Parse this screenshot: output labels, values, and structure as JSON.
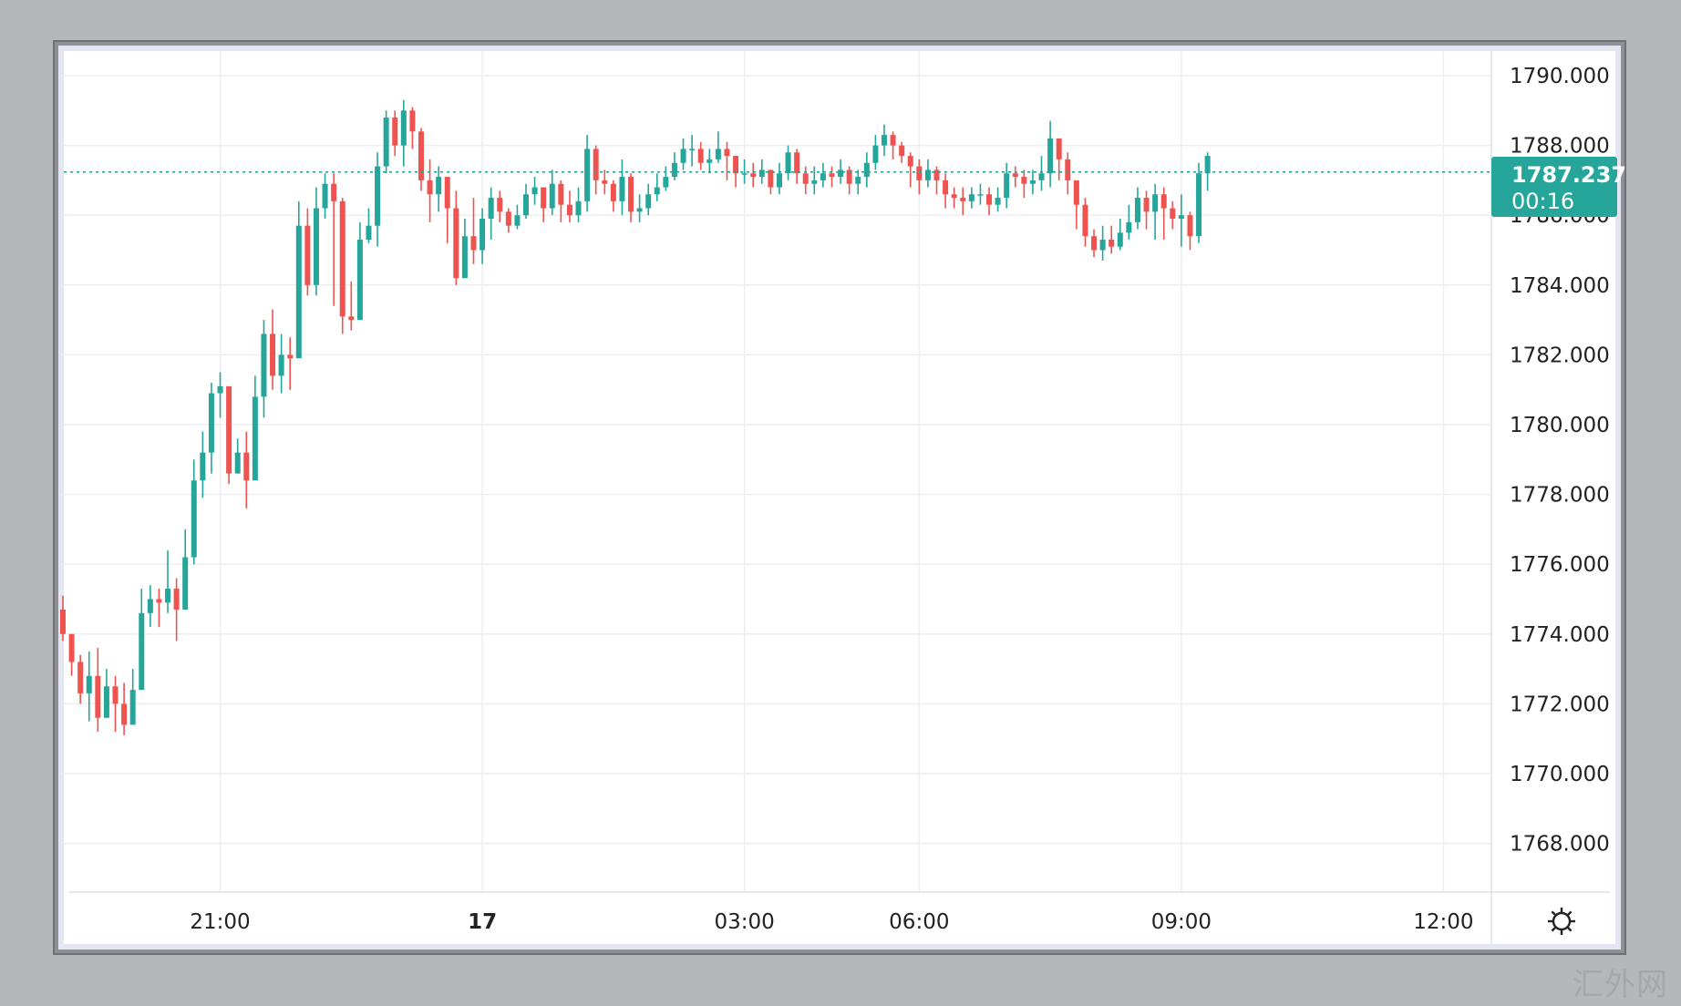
{
  "watermark": "汇外网",
  "current_price_label": "1787.237",
  "countdown_label": "00:16",
  "colors": {
    "up": "#26a69a",
    "down": "#ef5350",
    "price_line": "#26a69a",
    "grid": "#eceef2"
  },
  "settings_icon": "gear-icon",
  "chart_data": {
    "type": "candlestick",
    "title": "",
    "xlabel": "",
    "ylabel": "",
    "ylim": [
      1766.2,
      1791.3
    ],
    "y_ticks": [
      "1768.000",
      "1770.000",
      "1772.000",
      "1774.000",
      "1776.000",
      "1778.000",
      "1780.000",
      "1782.000",
      "1784.000",
      "1786.000",
      "1788.000",
      "1790.000"
    ],
    "x_ticks": [
      {
        "label": "21:00",
        "bar": 18
      },
      {
        "label": "17",
        "bar": 48,
        "bold": true
      },
      {
        "label": "03:00",
        "bar": 78
      },
      {
        "label": "06:00",
        "bar": 98
      },
      {
        "label": "09:00",
        "bar": 128
      },
      {
        "label": "12:00",
        "bar": 158
      }
    ],
    "grid": true,
    "current_price": 1787.237,
    "closes": [
      1774.0,
      1773.2,
      1772.3,
      1772.8,
      1771.6,
      1772.5,
      1772.0,
      1771.4,
      1772.4,
      1774.6,
      1775.0,
      1774.9,
      1775.3,
      1774.7,
      1776.2,
      1778.4,
      1779.2,
      1780.9,
      1781.1,
      1778.6,
      1779.2,
      1778.4,
      1780.8,
      1782.6,
      1781.4,
      1782.0,
      1781.9,
      1785.7,
      1784.0,
      1786.2,
      1786.9,
      1786.4,
      1783.1,
      1783.0,
      1785.3,
      1785.7,
      1787.4,
      1788.8,
      1788.0,
      1789.0,
      1788.4,
      1787.0,
      1786.6,
      1787.1,
      1786.2,
      1784.2,
      1785.4,
      1785.0,
      1785.9,
      1786.5,
      1786.1,
      1785.7,
      1786.0,
      1786.6,
      1786.8,
      1786.2,
      1786.9,
      1786.3,
      1786.0,
      1786.4,
      1787.9,
      1787.0,
      1786.9,
      1786.4,
      1787.1,
      1786.1,
      1786.2,
      1786.6,
      1786.8,
      1787.1,
      1787.5,
      1787.9,
      1787.9,
      1787.5,
      1787.6,
      1787.9,
      1787.7,
      1787.2,
      1787.2,
      1787.1,
      1787.3,
      1786.8,
      1787.2,
      1787.8,
      1787.2,
      1786.9,
      1787.0,
      1787.2,
      1787.1,
      1787.3,
      1786.9,
      1787.1,
      1787.5,
      1788.0,
      1788.3,
      1788.0,
      1787.7,
      1787.4,
      1787.0,
      1787.3,
      1787.0,
      1786.6,
      1786.5,
      1786.4,
      1786.6,
      1786.6,
      1786.3,
      1786.5,
      1787.2,
      1787.1,
      1786.9,
      1787.0,
      1787.2,
      1788.2,
      1787.6,
      1787.0,
      1786.3,
      1785.4,
      1785.0,
      1785.3,
      1785.1,
      1785.5,
      1785.8,
      1786.5,
      1786.1,
      1786.6,
      1786.2,
      1785.9,
      1786.0,
      1785.4,
      1787.2,
      1787.7
    ],
    "highs": [
      1775.1,
      1774.0,
      1773.4,
      1773.5,
      1773.6,
      1773.0,
      1772.8,
      1772.6,
      1773.0,
      1775.3,
      1775.4,
      1775.3,
      1776.4,
      1775.6,
      1777.0,
      1779.0,
      1779.8,
      1781.2,
      1781.5,
      1780.3,
      1779.6,
      1779.8,
      1781.4,
      1783.0,
      1783.3,
      1782.6,
      1782.5,
      1786.4,
      1786.2,
      1786.8,
      1787.2,
      1787.2,
      1786.5,
      1784.1,
      1785.8,
      1786.2,
      1787.8,
      1789.0,
      1789.0,
      1789.3,
      1789.1,
      1788.5,
      1787.6,
      1787.4,
      1787.0,
      1786.7,
      1785.9,
      1786.5,
      1786.2,
      1786.8,
      1786.7,
      1786.2,
      1786.3,
      1786.9,
      1787.1,
      1786.8,
      1787.3,
      1787.0,
      1786.7,
      1786.8,
      1788.3,
      1788.0,
      1787.3,
      1787.0,
      1787.6,
      1787.2,
      1786.6,
      1786.9,
      1787.2,
      1787.4,
      1787.8,
      1788.2,
      1788.3,
      1788.1,
      1787.9,
      1788.4,
      1788.1,
      1787.7,
      1787.6,
      1787.5,
      1787.6,
      1787.3,
      1787.5,
      1788.0,
      1787.9,
      1787.4,
      1787.4,
      1787.5,
      1787.4,
      1787.6,
      1787.4,
      1787.3,
      1787.8,
      1788.3,
      1788.6,
      1788.4,
      1788.1,
      1787.8,
      1787.6,
      1787.6,
      1787.4,
      1787.2,
      1786.8,
      1786.8,
      1786.8,
      1786.9,
      1786.8,
      1786.8,
      1787.5,
      1787.4,
      1787.3,
      1787.3,
      1787.7,
      1788.7,
      1788.1,
      1787.8,
      1787.0,
      1786.5,
      1785.6,
      1785.7,
      1785.7,
      1785.9,
      1786.3,
      1786.8,
      1786.7,
      1786.9,
      1786.8,
      1786.4,
      1786.6,
      1786.1,
      1787.5,
      1787.8
    ],
    "lows": [
      1773.8,
      1772.8,
      1772.0,
      1771.5,
      1771.2,
      1771.6,
      1771.2,
      1771.1,
      1771.7,
      1772.4,
      1774.2,
      1774.2,
      1774.6,
      1773.8,
      1774.7,
      1776.0,
      1777.9,
      1778.6,
      1780.2,
      1778.3,
      1778.6,
      1777.6,
      1778.6,
      1780.2,
      1781.0,
      1780.9,
      1781.0,
      1782.0,
      1783.7,
      1783.7,
      1785.9,
      1783.4,
      1782.6,
      1782.7,
      1783.0,
      1785.2,
      1785.1,
      1787.2,
      1787.7,
      1787.4,
      1787.9,
      1786.7,
      1785.8,
      1786.1,
      1785.2,
      1784.0,
      1784.2,
      1784.6,
      1784.6,
      1785.3,
      1785.8,
      1785.5,
      1785.6,
      1785.9,
      1786.3,
      1785.8,
      1786.0,
      1785.8,
      1785.8,
      1785.8,
      1786.1,
      1786.6,
      1786.6,
      1786.1,
      1786.0,
      1785.8,
      1785.8,
      1786.0,
      1786.4,
      1786.7,
      1787.0,
      1787.3,
      1787.4,
      1787.3,
      1787.2,
      1787.5,
      1787.0,
      1786.8,
      1786.9,
      1786.8,
      1786.9,
      1786.6,
      1786.6,
      1787.0,
      1786.9,
      1786.6,
      1786.6,
      1786.8,
      1786.8,
      1786.9,
      1786.6,
      1786.6,
      1786.8,
      1787.3,
      1787.7,
      1787.6,
      1787.5,
      1786.8,
      1786.6,
      1786.8,
      1786.6,
      1786.2,
      1786.2,
      1786.0,
      1786.2,
      1786.3,
      1786.0,
      1786.1,
      1786.2,
      1786.8,
      1786.5,
      1786.6,
      1786.7,
      1786.8,
      1787.0,
      1786.6,
      1785.6,
      1785.1,
      1784.8,
      1784.7,
      1784.9,
      1785.0,
      1785.3,
      1785.6,
      1785.6,
      1785.3,
      1785.3,
      1785.6,
      1785.1,
      1785.0,
      1785.2,
      1786.7
    ],
    "opens": [
      1774.7,
      1774.0,
      1773.2,
      1772.3,
      1772.8,
      1771.6,
      1772.5,
      1772.0,
      1771.4,
      1772.4,
      1774.6,
      1775.0,
      1774.9,
      1775.3,
      1774.7,
      1776.2,
      1778.4,
      1779.2,
      1780.9,
      1781.1,
      1778.6,
      1779.2,
      1778.4,
      1780.8,
      1782.6,
      1781.4,
      1782.0,
      1781.9,
      1785.7,
      1784.0,
      1786.2,
      1786.9,
      1786.4,
      1783.1,
      1783.0,
      1785.3,
      1785.7,
      1787.4,
      1788.8,
      1788.0,
      1789.0,
      1788.4,
      1787.0,
      1786.6,
      1787.1,
      1786.2,
      1784.2,
      1785.4,
      1785.0,
      1785.9,
      1786.5,
      1786.1,
      1785.7,
      1786.0,
      1786.6,
      1786.8,
      1786.2,
      1786.9,
      1786.3,
      1786.0,
      1786.4,
      1787.9,
      1787.0,
      1786.9,
      1786.4,
      1787.1,
      1786.1,
      1786.2,
      1786.6,
      1786.8,
      1787.1,
      1787.5,
      1787.9,
      1787.9,
      1787.5,
      1787.6,
      1787.9,
      1787.7,
      1787.2,
      1787.2,
      1787.1,
      1787.3,
      1786.8,
      1787.2,
      1787.8,
      1787.2,
      1786.9,
      1787.0,
      1787.2,
      1787.1,
      1787.3,
      1786.9,
      1787.1,
      1787.5,
      1788.0,
      1788.3,
      1788.0,
      1787.7,
      1787.4,
      1787.0,
      1787.3,
      1787.0,
      1786.6,
      1786.5,
      1786.4,
      1786.6,
      1786.6,
      1786.3,
      1786.5,
      1787.2,
      1787.1,
      1786.9,
      1787.0,
      1787.2,
      1788.2,
      1787.6,
      1787.0,
      1786.3,
      1785.4,
      1785.0,
      1785.3,
      1785.1,
      1785.5,
      1785.8,
      1786.5,
      1786.1,
      1786.6,
      1786.2,
      1785.9,
      1786.0,
      1785.4,
      1787.2
    ]
  }
}
